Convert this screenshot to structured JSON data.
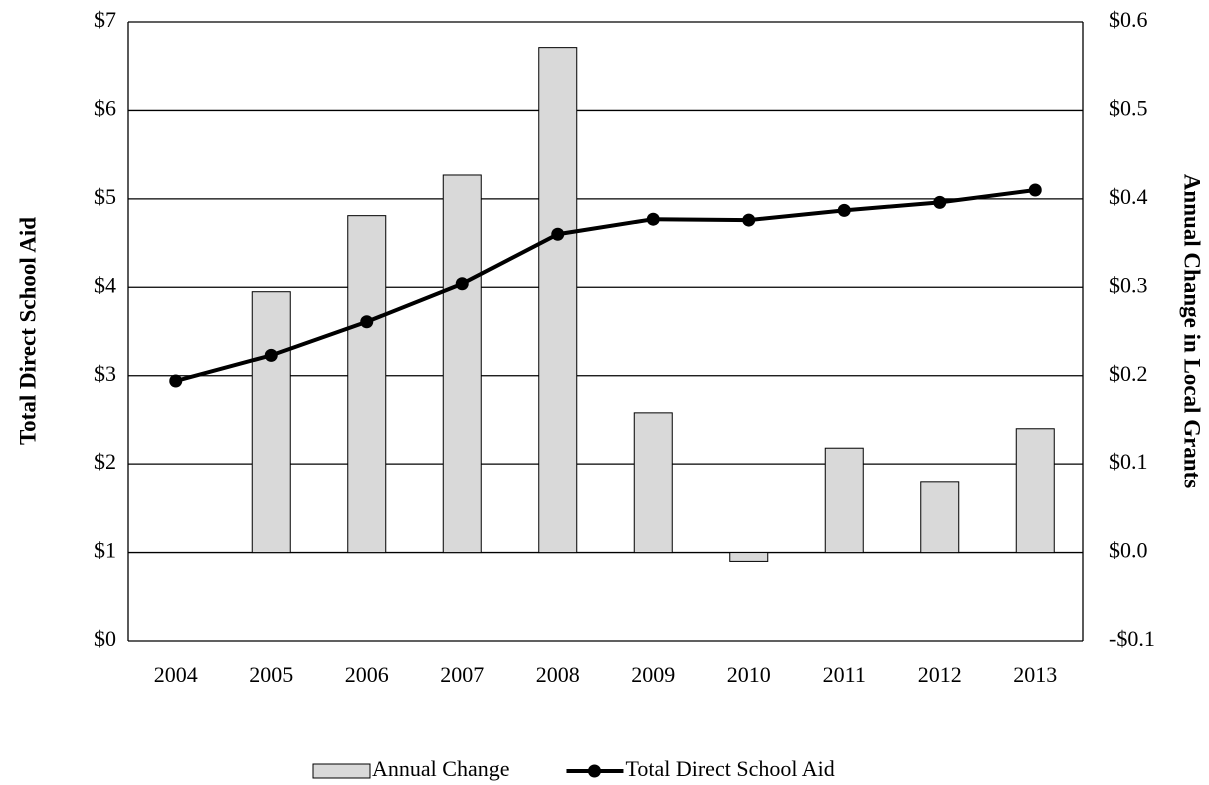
{
  "chart_data": {
    "type": "bar-line",
    "y_label": "Total Direct School Aid",
    "y2_label": "Annual Change in Local Grants",
    "categories": [
      "2004",
      "2005",
      "2006",
      "2007",
      "2008",
      "2009",
      "2010",
      "2011",
      "2012",
      "2013"
    ],
    "series": [
      {
        "name": "Annual Change",
        "type": "bar",
        "axis": "y2",
        "color": "#d9d9d9",
        "values": [
          null,
          0.295,
          0.381,
          0.427,
          0.571,
          0.158,
          -0.01,
          0.118,
          0.08,
          0.14
        ]
      },
      {
        "name": "Total Direct School Aid",
        "type": "line",
        "axis": "y",
        "color": "#000000",
        "values": [
          2.94,
          3.23,
          3.61,
          4.04,
          4.6,
          4.77,
          4.76,
          4.87,
          4.96,
          5.1
        ]
      }
    ],
    "ylim": [
      0,
      7
    ],
    "yticks": [
      {
        "value": 0,
        "label": "$0"
      },
      {
        "value": 1,
        "label": "$1"
      },
      {
        "value": 2,
        "label": "$2"
      },
      {
        "value": 3,
        "label": "$3"
      },
      {
        "value": 4,
        "label": "$4"
      },
      {
        "value": 5,
        "label": "$5"
      },
      {
        "value": 6,
        "label": "$6"
      },
      {
        "value": 7,
        "label": "$7"
      }
    ],
    "y2lim": [
      -0.1,
      0.6
    ],
    "y2ticks": [
      {
        "value": -0.1,
        "label": "-$0.1"
      },
      {
        "value": 0,
        "label": "$0.0"
      },
      {
        "value": 0.1,
        "label": "$0.1"
      },
      {
        "value": 0.2,
        "label": "$0.2"
      },
      {
        "value": 0.3,
        "label": "$0.3"
      },
      {
        "value": 0.4,
        "label": "$0.4"
      },
      {
        "value": 0.5,
        "label": "$0.5"
      },
      {
        "value": 0.6,
        "label": "$0.6"
      }
    ],
    "grid": true,
    "legend": "bottom"
  }
}
